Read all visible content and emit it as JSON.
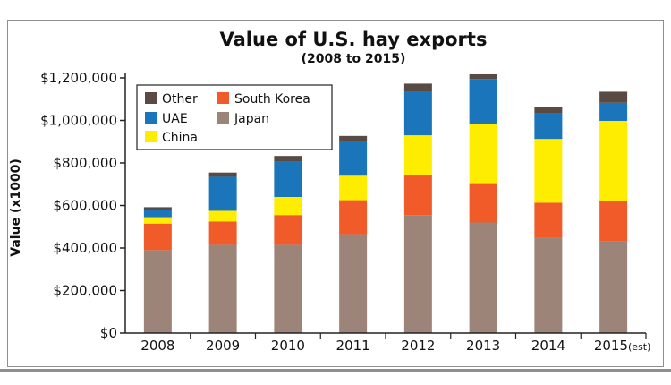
{
  "chart_data": {
    "type": "bar",
    "stacked": true,
    "title": "Value of U.S. hay exports",
    "subtitle": "(2008 to 2015)",
    "ylabel": "Value (x1000)",
    "xlabel": "",
    "categories": [
      "2008",
      "2009",
      "2010",
      "2011",
      "2012",
      "2013",
      "2014",
      "2015"
    ],
    "category_suffix": {
      "2015": "(est)"
    },
    "ylim": [
      0,
      1200000
    ],
    "yticks": [
      0,
      200000,
      400000,
      600000,
      800000,
      1000000,
      1200000
    ],
    "ytick_labels": [
      "$0",
      "$200,000",
      "$400,000",
      "$600,000",
      "$800,000",
      "$1,000,000",
      "$1,200,000"
    ],
    "grid": false,
    "legend_position": "top-left",
    "series": [
      {
        "name": "Japan",
        "color": "#9c8578",
        "values": [
          390000,
          415000,
          415000,
          465000,
          555000,
          520000,
          448000,
          432000
        ]
      },
      {
        "name": "South Korea",
        "color": "#f15a29",
        "values": [
          125000,
          110000,
          140000,
          160000,
          190000,
          185000,
          165000,
          188000
        ]
      },
      {
        "name": "China",
        "color": "#ffed00",
        "values": [
          30000,
          50000,
          85000,
          115000,
          185000,
          280000,
          300000,
          378000
        ]
      },
      {
        "name": "UAE",
        "color": "#1a75bb",
        "values": [
          35000,
          160000,
          165000,
          165000,
          205000,
          210000,
          120000,
          85000
        ]
      },
      {
        "name": "Other",
        "color": "#5a4a44",
        "values": [
          12000,
          20000,
          28000,
          22000,
          38000,
          22000,
          30000,
          52000
        ]
      }
    ],
    "legend_layout": [
      [
        "Other",
        "South Korea"
      ],
      [
        "UAE",
        "Japan"
      ],
      [
        "China"
      ]
    ]
  }
}
